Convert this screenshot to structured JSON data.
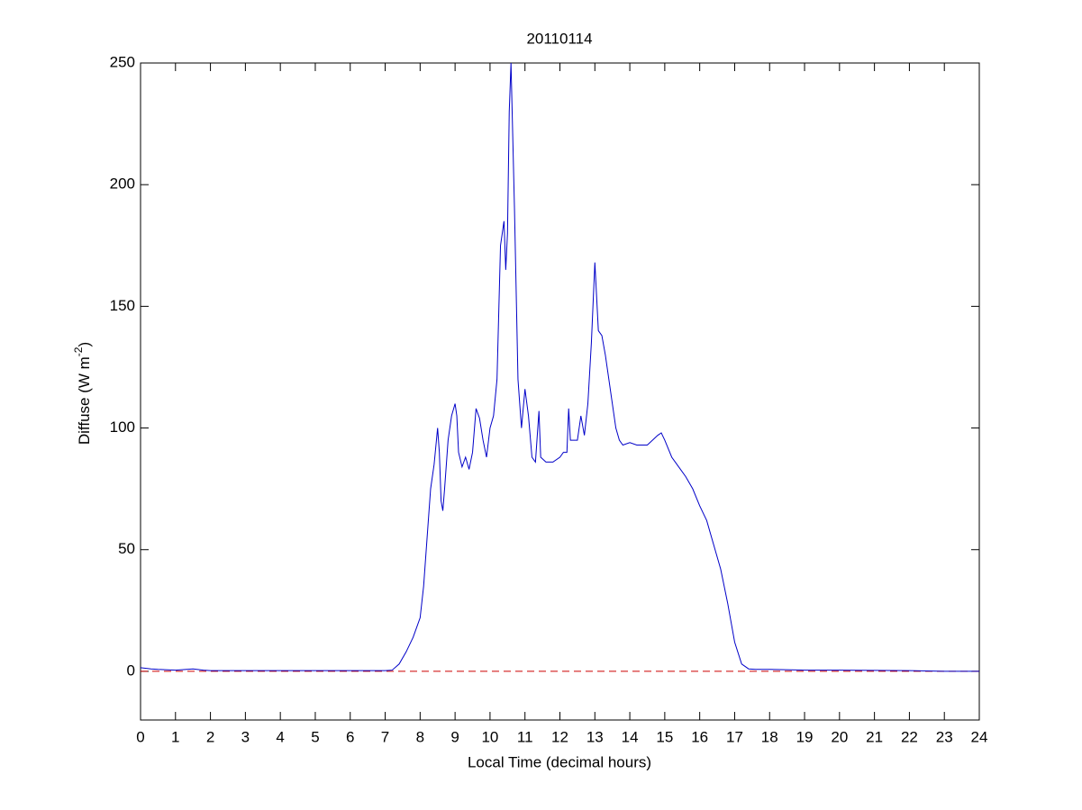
{
  "chart_data": {
    "type": "line",
    "title": "20110114",
    "xlabel": "Local Time (decimal hours)",
    "ylabel": [
      "Diffuse (W m",
      "-2",
      ")"
    ],
    "xlim": [
      0,
      24
    ],
    "xticks": [
      0,
      1,
      2,
      3,
      4,
      5,
      6,
      7,
      8,
      9,
      10,
      11,
      12,
      13,
      14,
      15,
      16,
      17,
      18,
      19,
      20,
      21,
      22,
      23,
      24
    ],
    "ylim": [
      -20,
      250
    ],
    "yticks": [
      0,
      50,
      100,
      150,
      200,
      250
    ],
    "reference_line": {
      "y": 0,
      "color": "#cc0000",
      "style": "dashed"
    },
    "series": [
      {
        "color": "#0000c8",
        "x": [
          0,
          0.3,
          0.5,
          1,
          1.5,
          1.8,
          2,
          3,
          4,
          5,
          6,
          7,
          7.2,
          7.4,
          7.6,
          7.8,
          8,
          8.1,
          8.2,
          8.3,
          8.4,
          8.5,
          8.55,
          8.6,
          8.65,
          8.7,
          8.8,
          8.9,
          9,
          9.05,
          9.1,
          9.2,
          9.3,
          9.4,
          9.5,
          9.6,
          9.7,
          9.8,
          9.9,
          10,
          10.1,
          10.2,
          10.3,
          10.4,
          10.45,
          10.5,
          10.55,
          10.6,
          10.7,
          10.8,
          10.9,
          11,
          11.1,
          11.2,
          11.3,
          11.4,
          11.45,
          11.6,
          11.8,
          12,
          12.1,
          12.2,
          12.25,
          12.3,
          12.5,
          12.6,
          12.7,
          12.8,
          12.9,
          13,
          13.1,
          13.2,
          13.3,
          13.4,
          13.5,
          13.6,
          13.7,
          13.8,
          14,
          14.2,
          14.5,
          14.8,
          14.9,
          15,
          15.2,
          15.4,
          15.6,
          15.8,
          16,
          16.2,
          16.4,
          16.6,
          16.8,
          17,
          17.2,
          17.4,
          17.6,
          18,
          19,
          20,
          21,
          22,
          23,
          24
        ],
        "values": [
          1.5,
          1,
          0.8,
          0.5,
          1,
          0.5,
          0.3,
          0.3,
          0.3,
          0.3,
          0.3,
          0.3,
          0.5,
          3,
          8,
          14,
          22,
          35,
          55,
          75,
          85,
          100,
          90,
          70,
          66,
          75,
          95,
          105,
          110,
          105,
          90,
          84,
          88,
          83,
          90,
          108,
          104,
          95,
          88,
          100,
          105,
          120,
          175,
          185,
          165,
          180,
          230,
          250,
          190,
          120,
          100,
          116,
          105,
          88,
          86,
          107,
          88,
          86,
          86,
          88,
          90,
          90,
          108,
          95,
          95,
          105,
          97,
          110,
          135,
          168,
          140,
          138,
          130,
          120,
          110,
          100,
          95,
          93,
          94,
          93,
          93,
          97,
          98,
          95,
          88,
          84,
          80,
          75,
          68,
          62,
          52,
          42,
          28,
          12,
          3,
          1,
          0.8,
          0.8,
          0.5,
          0.5,
          0.4,
          0.3,
          0,
          0
        ]
      }
    ]
  }
}
